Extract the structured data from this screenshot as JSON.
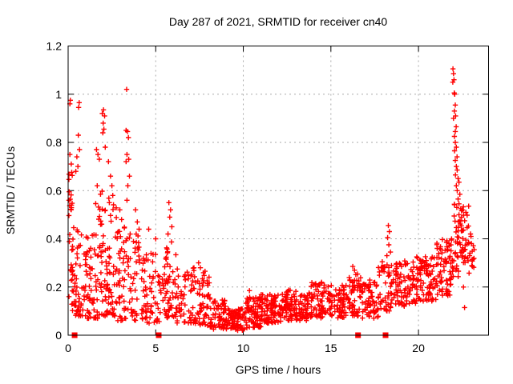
{
  "colors": {
    "marker": "#ff0000",
    "grid": "#a8a8a8",
    "axis": "#000000",
    "background": "#ffffff",
    "text": "#000000"
  },
  "chart_data": {
    "type": "scatter",
    "title": "Day 287 of 2021, SRMTID for receiver cn40",
    "xlabel": "GPS time / hours",
    "ylabel": "SRMTID / TECUs",
    "xlim": [
      0,
      24
    ],
    "ylim": [
      0,
      1.2
    ],
    "xticks": [
      0,
      5,
      10,
      15,
      20
    ],
    "xtick_labels": [
      "0",
      "5",
      "10",
      "15",
      "20"
    ],
    "yticks": [
      0,
      0.2,
      0.4,
      0.6,
      0.8,
      1,
      1.2
    ],
    "ytick_labels": [
      "0",
      "0.2",
      "0.4",
      "0.6",
      "0.8",
      "1",
      "1.2"
    ],
    "grid": "dashed gray at major ticks",
    "legend_position": "none",
    "series": [
      {
        "name": "SRMTID",
        "marker": "plus",
        "color": "#ff0000",
        "bands_key": [
          "x_start",
          "x_end",
          "count",
          "y_min",
          "y_max",
          "bias_exponent"
        ],
        "bands": [
          [
            0.02,
            0.28,
            26,
            0.16,
            0.68,
            0.7
          ],
          [
            0.05,
            0.35,
            10,
            0.1,
            0.3,
            1.0
          ],
          [
            0.3,
            1.0,
            50,
            0.08,
            0.45,
            1.8
          ],
          [
            1.0,
            1.8,
            60,
            0.07,
            0.42,
            1.8
          ],
          [
            1.55,
            1.95,
            8,
            0.45,
            0.62,
            1.0
          ],
          [
            1.8,
            2.3,
            40,
            0.08,
            0.55,
            1.6
          ],
          [
            2.3,
            2.8,
            42,
            0.08,
            0.6,
            1.8
          ],
          [
            2.8,
            3.3,
            40,
            0.06,
            0.45,
            1.7
          ],
          [
            3.3,
            3.6,
            16,
            0.1,
            0.5,
            1.4
          ],
          [
            3.6,
            4.3,
            40,
            0.06,
            0.42,
            1.8
          ],
          [
            4.3,
            5.3,
            55,
            0.05,
            0.34,
            1.8
          ],
          [
            5.3,
            6.2,
            60,
            0.07,
            0.4,
            1.8
          ],
          [
            6.2,
            7.2,
            55,
            0.05,
            0.28,
            1.5
          ],
          [
            7.2,
            8.1,
            55,
            0.04,
            0.27,
            1.5
          ],
          [
            8.1,
            9.0,
            65,
            0.025,
            0.15,
            1.4
          ],
          [
            9.0,
            10.1,
            85,
            0.02,
            0.11,
            1.2
          ],
          [
            10.1,
            11.0,
            75,
            0.03,
            0.16,
            1.3
          ],
          [
            11.0,
            12.2,
            90,
            0.05,
            0.17,
            1.2
          ],
          [
            12.2,
            13.6,
            100,
            0.06,
            0.19,
            1.2
          ],
          [
            13.6,
            15.1,
            100,
            0.07,
            0.22,
            1.2
          ],
          [
            15.1,
            15.9,
            50,
            0.07,
            0.21,
            1.2
          ],
          [
            15.9,
            16.7,
            55,
            0.08,
            0.27,
            1.3
          ],
          [
            16.7,
            17.7,
            60,
            0.07,
            0.23,
            1.2
          ],
          [
            17.7,
            18.7,
            55,
            0.1,
            0.32,
            1.2
          ],
          [
            18.7,
            19.9,
            80,
            0.12,
            0.31,
            1.1
          ],
          [
            19.9,
            21.0,
            85,
            0.14,
            0.33,
            1.1
          ],
          [
            21.0,
            21.9,
            70,
            0.16,
            0.4,
            1.2
          ],
          [
            21.9,
            22.35,
            30,
            0.24,
            0.55,
            1.1
          ],
          [
            22.3,
            22.9,
            40,
            0.3,
            0.56,
            1.1
          ],
          [
            22.85,
            23.2,
            14,
            0.25,
            0.42,
            1.0
          ]
        ],
        "peak_points": [
          [
            0.1,
            0.96
          ],
          [
            0.13,
            0.975
          ],
          [
            0.6,
            0.945
          ],
          [
            0.63,
            0.965
          ],
          [
            0.58,
            0.83
          ],
          [
            0.1,
            0.75
          ],
          [
            0.18,
            0.71
          ],
          [
            0.5,
            0.74
          ],
          [
            0.56,
            0.7
          ],
          [
            0.65,
            0.77
          ],
          [
            0.44,
            0.68
          ],
          [
            1.62,
            0.77
          ],
          [
            1.7,
            0.75
          ],
          [
            1.78,
            0.73
          ],
          [
            1.66,
            0.62
          ],
          [
            1.95,
            0.92
          ],
          [
            2.02,
            0.935
          ],
          [
            2.08,
            0.91
          ],
          [
            2.0,
            0.88
          ],
          [
            2.04,
            0.855
          ],
          [
            1.98,
            0.84
          ],
          [
            2.12,
            0.78
          ],
          [
            2.3,
            0.72
          ],
          [
            2.42,
            0.66
          ],
          [
            2.5,
            0.62
          ],
          [
            2.55,
            0.58
          ],
          [
            2.35,
            0.55
          ],
          [
            2.95,
            0.52
          ],
          [
            3.05,
            0.48
          ],
          [
            3.34,
            1.02
          ],
          [
            3.31,
            0.85
          ],
          [
            3.39,
            0.845
          ],
          [
            3.44,
            0.82
          ],
          [
            3.36,
            0.75
          ],
          [
            3.31,
            0.72
          ],
          [
            3.46,
            0.73
          ],
          [
            3.5,
            0.66
          ],
          [
            3.41,
            0.62
          ],
          [
            3.36,
            0.56
          ],
          [
            3.85,
            0.52
          ],
          [
            3.95,
            0.47
          ],
          [
            4.05,
            0.44
          ],
          [
            4.6,
            0.44
          ],
          [
            5.0,
            0.4
          ],
          [
            5.75,
            0.55
          ],
          [
            5.85,
            0.52
          ],
          [
            5.8,
            0.49
          ],
          [
            5.92,
            0.45
          ],
          [
            5.7,
            0.42
          ],
          [
            7.45,
            0.3
          ],
          [
            7.55,
            0.28
          ],
          [
            10.35,
            0.185
          ],
          [
            16.25,
            0.285
          ],
          [
            16.35,
            0.27
          ],
          [
            18.28,
            0.455
          ],
          [
            18.34,
            0.43
          ],
          [
            18.24,
            0.405
          ],
          [
            18.31,
            0.375
          ],
          [
            18.4,
            0.345
          ],
          [
            18.2,
            0.33
          ],
          [
            21.97,
            1.105
          ],
          [
            22.0,
            1.085
          ],
          [
            22.03,
            1.06
          ],
          [
            21.96,
            1.05
          ],
          [
            22.04,
            1.005
          ],
          [
            22.07,
            1.0
          ],
          [
            22.1,
            0.955
          ],
          [
            22.05,
            0.93
          ],
          [
            22.12,
            0.91
          ],
          [
            22.0,
            0.9
          ],
          [
            22.15,
            0.865
          ],
          [
            22.1,
            0.845
          ],
          [
            22.05,
            0.825
          ],
          [
            22.1,
            0.8
          ],
          [
            22.16,
            0.78
          ],
          [
            22.06,
            0.765
          ],
          [
            22.2,
            0.74
          ],
          [
            22.1,
            0.725
          ],
          [
            22.16,
            0.7
          ],
          [
            22.21,
            0.685
          ],
          [
            22.11,
            0.665
          ],
          [
            22.26,
            0.65
          ],
          [
            22.31,
            0.635
          ],
          [
            22.16,
            0.62
          ],
          [
            22.21,
            0.6
          ],
          [
            22.36,
            0.585
          ],
          [
            22.26,
            0.565
          ],
          [
            22.31,
            0.545
          ],
          [
            22.41,
            0.525
          ],
          [
            22.31,
            0.5
          ],
          [
            22.46,
            0.49
          ],
          [
            22.36,
            0.47
          ],
          [
            22.57,
            0.2
          ],
          [
            22.63,
            0.115
          ],
          [
            22.97,
            0.42
          ],
          [
            23.02,
            0.38
          ],
          [
            22.92,
            0.33
          ],
          [
            23.08,
            0.285
          ]
        ]
      },
      {
        "name": "squares-at-zero",
        "marker": "filled-square",
        "color": "#ff0000",
        "y": 0,
        "x": [
          0.37,
          5.17,
          16.55,
          18.12
        ]
      }
    ]
  }
}
